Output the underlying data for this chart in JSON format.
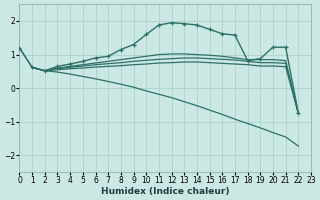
{
  "xlabel": "Humidex (Indice chaleur)",
  "background_color": "#cce8e4",
  "grid_color": "#aad4cc",
  "line_color": "#2d7068",
  "xlim": [
    0,
    23
  ],
  "ylim": [
    -2.5,
    2.5
  ],
  "xticks": [
    0,
    1,
    2,
    3,
    4,
    5,
    6,
    7,
    8,
    9,
    10,
    11,
    12,
    13,
    14,
    15,
    16,
    17,
    18,
    19,
    20,
    21,
    22,
    23
  ],
  "yticks": [
    -2,
    -1,
    0,
    1,
    2
  ],
  "line_arch_x": [
    0,
    1,
    2,
    3,
    4,
    5,
    6,
    7,
    8,
    9,
    10,
    11,
    12,
    13,
    14,
    15,
    16,
    17,
    18,
    19,
    20,
    21,
    22
  ],
  "line_arch_y": [
    1.2,
    0.62,
    0.52,
    0.65,
    0.72,
    0.8,
    0.9,
    0.95,
    1.15,
    1.3,
    1.6,
    1.88,
    1.95,
    1.92,
    1.88,
    1.75,
    1.62,
    1.58,
    0.82,
    0.88,
    1.22,
    1.22,
    -0.75
  ],
  "line_diag_x": [
    1,
    2,
    3,
    4,
    5,
    6,
    7,
    8,
    9,
    10,
    11,
    12,
    13,
    14,
    15,
    16,
    17,
    18,
    19,
    20,
    21,
    22
  ],
  "line_diag_y": [
    0.62,
    0.52,
    0.48,
    0.42,
    0.35,
    0.28,
    0.2,
    0.12,
    0.03,
    -0.08,
    -0.18,
    -0.28,
    -0.4,
    -0.52,
    -0.65,
    -0.78,
    -0.92,
    -1.05,
    -1.18,
    -1.32,
    -1.45,
    -1.72
  ],
  "line_flat1_x": [
    0,
    1,
    2,
    3,
    4,
    5,
    6,
    7,
    8,
    9,
    10,
    11,
    12,
    13,
    14,
    15,
    16,
    17,
    18,
    19,
    20,
    21,
    22
  ],
  "line_flat1_y": [
    1.2,
    0.62,
    0.52,
    0.6,
    0.65,
    0.7,
    0.75,
    0.8,
    0.85,
    0.9,
    0.95,
    1.0,
    1.02,
    1.02,
    1.0,
    0.98,
    0.95,
    0.9,
    0.85,
    0.85,
    0.85,
    0.82,
    -0.75
  ],
  "line_flat2_x": [
    1,
    2,
    3,
    4,
    5,
    6,
    7,
    8,
    9,
    10,
    11,
    12,
    13,
    14,
    15,
    16,
    17,
    18,
    19,
    20,
    21,
    22
  ],
  "line_flat2_y": [
    0.62,
    0.52,
    0.58,
    0.62,
    0.66,
    0.7,
    0.73,
    0.76,
    0.8,
    0.83,
    0.86,
    0.88,
    0.9,
    0.9,
    0.88,
    0.86,
    0.84,
    0.8,
    0.76,
    0.76,
    0.74,
    -0.75
  ],
  "line_flat3_x": [
    1,
    2,
    3,
    4,
    5,
    6,
    7,
    8,
    9,
    10,
    11,
    12,
    13,
    14,
    15,
    16,
    17,
    18,
    19,
    20,
    21,
    22
  ],
  "line_flat3_y": [
    0.62,
    0.52,
    0.55,
    0.58,
    0.6,
    0.63,
    0.65,
    0.67,
    0.7,
    0.72,
    0.75,
    0.76,
    0.78,
    0.78,
    0.76,
    0.74,
    0.72,
    0.7,
    0.66,
    0.66,
    0.64,
    -0.75
  ]
}
